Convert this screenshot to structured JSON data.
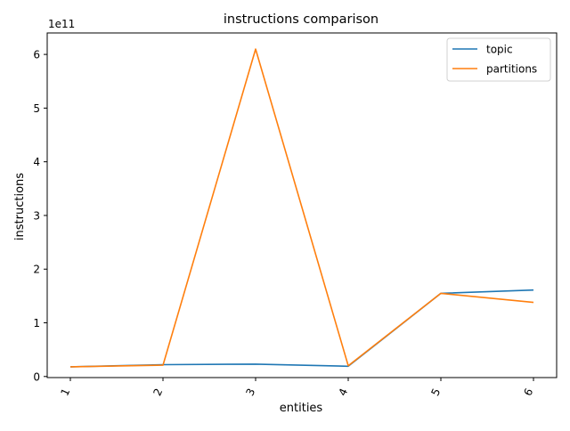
{
  "chart_data": {
    "type": "line",
    "title": "instructions comparison",
    "xlabel": "entities",
    "ylabel": "instructions",
    "offset_label": "1e11",
    "x": [
      1,
      2,
      3,
      4,
      5,
      6
    ],
    "x_tick_labels": [
      "1",
      "2",
      "3",
      "4",
      "5",
      "6"
    ],
    "y_ticks": [
      0,
      1,
      2,
      3,
      4,
      5,
      6
    ],
    "y_tick_labels": [
      "0",
      "1",
      "2",
      "3",
      "4",
      "5",
      "6"
    ],
    "ylim": [
      -0.02,
      6.4
    ],
    "xlim": [
      0.75,
      6.25
    ],
    "scale": 100000000000,
    "grid": false,
    "legend_position": "upper right",
    "series": [
      {
        "name": "topic",
        "color": "#1f77b4",
        "values": [
          0.18,
          0.22,
          0.23,
          0.19,
          1.55,
          1.61
        ]
      },
      {
        "name": "partitions",
        "color": "#ff7f0e",
        "values": [
          0.18,
          0.21,
          6.1,
          0.2,
          1.55,
          1.38
        ]
      }
    ]
  }
}
